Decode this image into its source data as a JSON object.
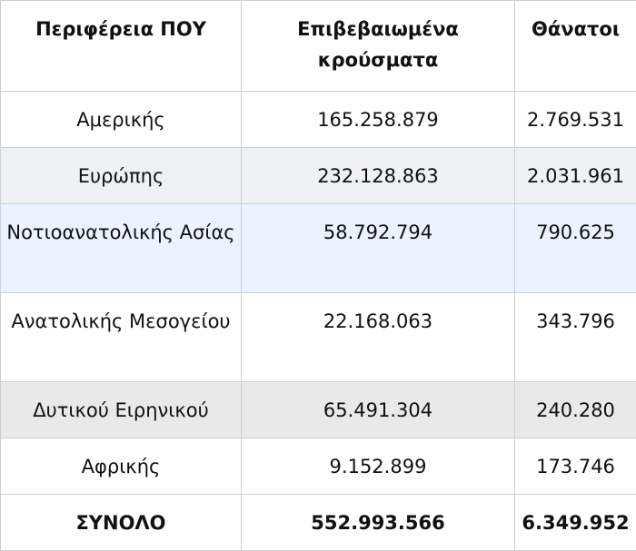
{
  "table": {
    "headers": [
      "Περιφέρεια ΠΟΥ",
      "Επιβεβαιωμένα κρούσματα",
      "Θάνατοι"
    ],
    "rows": [
      {
        "region": "Αμερικής",
        "cases": "165.258.879",
        "deaths": "2.769.531"
      },
      {
        "region": "Ευρώπης",
        "cases": "232.128.863",
        "deaths": "2.031.961"
      },
      {
        "region": "Νοτιοανατολικής Ασίας",
        "cases": "58.792.794",
        "deaths": "790.625"
      },
      {
        "region": "Ανατολικής Μεσογείου",
        "cases": "22.168.063",
        "deaths": "343.796"
      },
      {
        "region": "Δυτικού Ειρηνικού",
        "cases": "65.491.304",
        "deaths": "240.280"
      },
      {
        "region": "Αφρικής",
        "cases": "9.152.899",
        "deaths": "173.746"
      }
    ],
    "total": {
      "label": "ΣΥΝΟΛΟ",
      "cases": "552.993.566",
      "deaths": "6.349.952"
    }
  },
  "colors": {
    "border": "#cfcfcf",
    "row_gray": "#f0f1f4",
    "row_blue": "#eaf3ff",
    "row_darkgray": "#e9e9e9"
  }
}
